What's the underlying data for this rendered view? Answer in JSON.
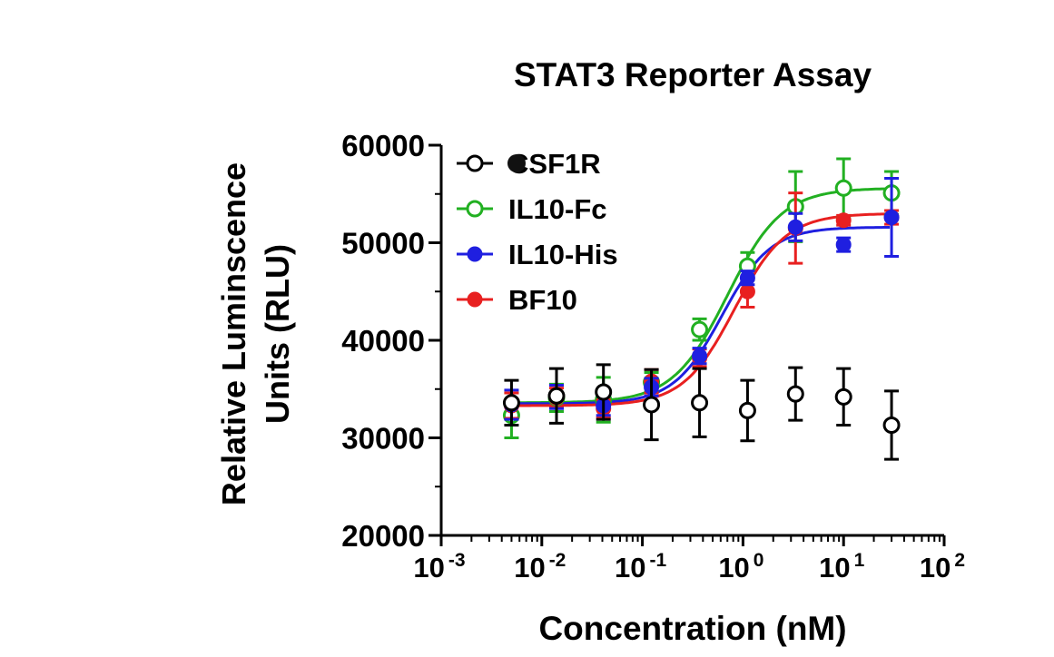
{
  "chart_data": {
    "type": "scatter",
    "title": "STAT3 Reporter Assay",
    "xlabel": "Concentration (nM)",
    "ylabel_line1": "Relative Luminscence",
    "ylabel_line2": "Units (RLU)",
    "x_scale": "log",
    "xlim": [
      0.001,
      100
    ],
    "ylim": [
      20000,
      60000
    ],
    "y_ticks": [
      {
        "value": 20000,
        "label": "20000"
      },
      {
        "value": 30000,
        "label": "30000"
      },
      {
        "value": 40000,
        "label": "40000"
      },
      {
        "value": 50000,
        "label": "50000"
      },
      {
        "value": 60000,
        "label": "60000"
      }
    ],
    "x_ticks": [
      {
        "value": 0.001,
        "base": "10",
        "exp": "-3"
      },
      {
        "value": 0.01,
        "base": "10",
        "exp": "-2"
      },
      {
        "value": 0.1,
        "base": "10",
        "exp": "-1"
      },
      {
        "value": 1,
        "base": "10",
        "exp": "0"
      },
      {
        "value": 10,
        "base": "10",
        "exp": "1"
      },
      {
        "value": 100,
        "base": "10",
        "exp": "2"
      }
    ],
    "legend_position": "top-left",
    "series": [
      {
        "name": "CSF1R",
        "color": "#000000",
        "marker": "open-circle",
        "fit": false,
        "x": [
          0.005,
          0.014,
          0.041,
          0.123,
          0.37,
          1.11,
          3.33,
          10,
          30
        ],
        "y": [
          33600,
          34300,
          34700,
          33400,
          33600,
          32800,
          34500,
          34200,
          31300
        ],
        "err": [
          2300,
          2800,
          2800,
          3600,
          3500,
          3100,
          2700,
          2900,
          3500
        ]
      },
      {
        "name": "IL10-Fc",
        "color": "#22b022",
        "marker": "open-circle",
        "fit": true,
        "fit_params": {
          "bottom": 33600,
          "top": 55600,
          "ec50": 0.7,
          "hill": 1.6
        },
        "x": [
          0.005,
          0.014,
          0.041,
          0.123,
          0.37,
          1.11,
          3.33,
          10,
          30
        ],
        "y": [
          32300,
          34100,
          33900,
          35700,
          41100,
          47600,
          53700,
          55600,
          55100
        ],
        "err": [
          2300,
          1400,
          2300,
          1000,
          1100,
          1400,
          3600,
          3000,
          2200
        ]
      },
      {
        "name": "IL10-His",
        "color": "#1f1fe0",
        "marker": "filled-circle",
        "fit": true,
        "fit_params": {
          "bottom": 33500,
          "top": 51600,
          "ec50": 0.62,
          "hill": 1.8
        },
        "x": [
          0.005,
          0.014,
          0.041,
          0.123,
          0.37,
          1.11,
          3.33,
          10,
          30
        ],
        "y": [
          33400,
          34200,
          33300,
          35200,
          38400,
          46400,
          51600,
          49800,
          52600
        ],
        "err": [
          1500,
          1200,
          1000,
          900,
          800,
          700,
          1400,
          700,
          4000
        ]
      },
      {
        "name": "BF10",
        "color": "#e82020",
        "marker": "filled-circle",
        "fit": true,
        "fit_params": {
          "bottom": 33300,
          "top": 53000,
          "ec50": 0.82,
          "hill": 1.7
        },
        "x": [
          0.005,
          0.014,
          0.041,
          0.123,
          0.37,
          1.11,
          3.33,
          10,
          30
        ],
        "y": [
          33300,
          34100,
          33000,
          35800,
          38200,
          45000,
          51500,
          52300,
          52600
        ],
        "err": [
          1300,
          1000,
          900,
          1200,
          900,
          1600,
          3600,
          500,
          700
        ]
      }
    ]
  }
}
